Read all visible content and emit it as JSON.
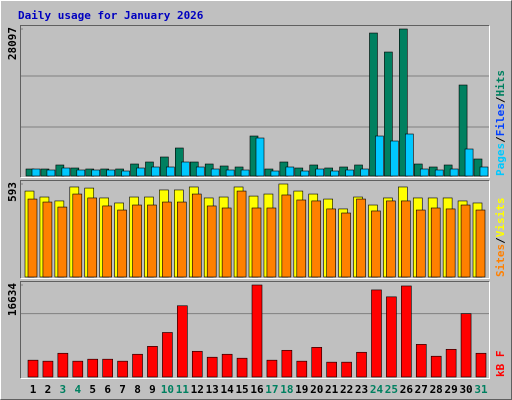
{
  "chart_data": [
    {
      "type": "bar",
      "title": "Daily usage for January 2026",
      "ylim": [
        0,
        28097
      ],
      "yticks": [
        28097
      ],
      "legend_separator": "/",
      "series": [
        {
          "name": "Hits",
          "color": "#008060",
          "values": [
            1338,
            1338,
            2102,
            1529,
            1338,
            1338,
            1338,
            2293,
            2675,
            3631,
            5351,
            2675,
            2293,
            1911,
            1720,
            7644,
            1338,
            2675,
            1529,
            2102,
            1529,
            1720,
            2102,
            27327,
            23696,
            28097,
            2293,
            1720,
            2102,
            17390,
            3249
          ]
        },
        {
          "name": "Files",
          "color": "#0040ff",
          "values": [
            null,
            null,
            null,
            null,
            null,
            null,
            null,
            null,
            null,
            null,
            null,
            null,
            null,
            null,
            null,
            null,
            null,
            null,
            null,
            null,
            null,
            null,
            null,
            null,
            null,
            null,
            null,
            null,
            null,
            null,
            null
          ]
        },
        {
          "name": "Pages",
          "color": "#00c8ff",
          "values": [
            1338,
            1147,
            1529,
            1147,
            1147,
            1147,
            956,
            1529,
            1720,
            1720,
            2675,
            1720,
            1338,
            1147,
            1147,
            7262,
            956,
            1720,
            956,
            1338,
            956,
            1147,
            1338,
            7644,
            6689,
            8026,
            1338,
            1147,
            1338,
            5160,
            1720
          ]
        }
      ]
    },
    {
      "type": "bar",
      "ylim": [
        0,
        593
      ],
      "yticks": [
        593
      ],
      "legend_separator": "/",
      "series": [
        {
          "name": "Visits",
          "color": "#ffff00",
          "values": [
            548,
            510,
            485,
            574,
            567,
            504,
            472,
            510,
            510,
            555,
            555,
            574,
            504,
            510,
            574,
            516,
            529,
            593,
            548,
            529,
            497,
            434,
            510,
            459,
            504,
            574,
            504,
            504,
            504,
            485,
            472
          ]
        },
        {
          "name": "Sites",
          "color": "#ff8000",
          "values": [
            497,
            478,
            446,
            529,
            504,
            453,
            427,
            459,
            459,
            478,
            478,
            529,
            453,
            440,
            548,
            440,
            440,
            523,
            491,
            485,
            434,
            408,
            497,
            421,
            485,
            485,
            427,
            440,
            434,
            459,
            427
          ]
        }
      ]
    },
    {
      "type": "bar",
      "ylim": [
        0,
        16634
      ],
      "yticks": [
        16634
      ],
      "categories": [
        "1",
        "2",
        "3",
        "4",
        "5",
        "6",
        "7",
        "8",
        "9",
        "10",
        "11",
        "12",
        "13",
        "14",
        "15",
        "16",
        "17",
        "18",
        "19",
        "20",
        "21",
        "22",
        "23",
        "24",
        "25",
        "26",
        "27",
        "28",
        "29",
        "30",
        "31"
      ],
      "weekend": [
        3,
        4,
        10,
        11,
        17,
        18,
        24,
        25,
        31
      ],
      "weekend_color": "#008060",
      "weekday_color": "#000000",
      "series": [
        {
          "name": "kB F",
          "color": "#ff0000",
          "values": [
            3041,
            2862,
            4294,
            2862,
            3220,
            3220,
            2862,
            4115,
            5546,
            8050,
            12881,
            4651,
            3578,
            4115,
            3399,
            16634,
            3041,
            4830,
            2862,
            5367,
            2683,
            2683,
            4473,
            15743,
            14491,
            16459,
            5904,
            3757,
            5009,
            11450,
            4294
          ]
        }
      ]
    }
  ]
}
